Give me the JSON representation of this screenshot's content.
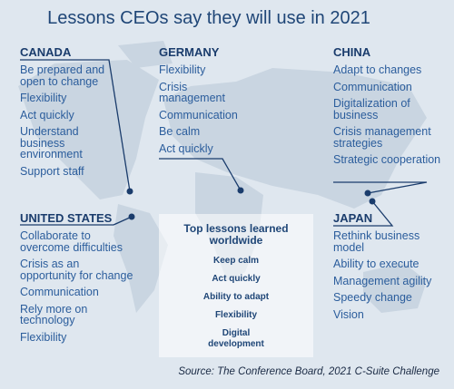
{
  "title": "Lessons CEOs say they will use in 2021",
  "regions": [
    {
      "name": "CANADA",
      "items": [
        "Be prepared and open to change",
        "Flexibility",
        "Act quickly",
        "Understand business environment",
        "Support staff"
      ]
    },
    {
      "name": "GERMANY",
      "items": [
        "Flexibility",
        "Crisis management",
        "Communication",
        "Be calm",
        "Act quickly"
      ]
    },
    {
      "name": "CHINA",
      "items": [
        "Adapt to changes",
        "Communication",
        "Digitalization of business",
        "Crisis management strategies",
        "Strategic cooperation"
      ]
    },
    {
      "name": "UNITED STATES",
      "items": [
        "Collaborate to overcome difficulties",
        "Crisis as an opportunity for change",
        "Communication",
        "Rely more on technology",
        "Flexibility"
      ]
    },
    {
      "name": "JAPAN",
      "items": [
        "Rethink business model",
        "Ability to execute",
        "Management agility",
        "Speedy change",
        "Vision"
      ]
    }
  ],
  "worldwide": {
    "title": "Top lessons learned worldwide",
    "items": [
      "Keep calm",
      "Act quickly",
      "Ability to adapt",
      "Flexibility",
      "Digital development"
    ]
  },
  "source": "Source: The Conference Board, 2021 C-Suite Challenge"
}
